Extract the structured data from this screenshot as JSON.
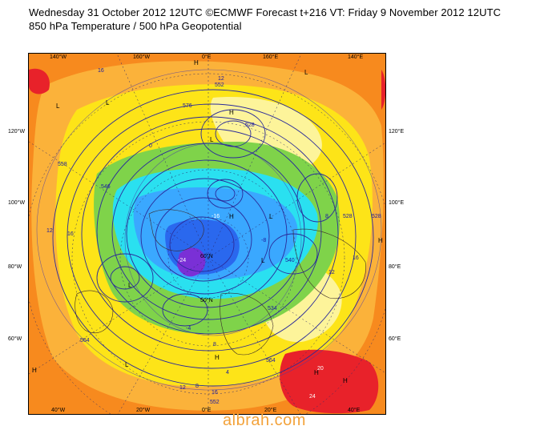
{
  "header": {
    "line1": "Wednesday 31 October 2012 12UTC ©ECMWF Forecast t+216 VT: Friday 9 November 2012 12UTC",
    "line2": "850 hPa Temperature / 500 hPa Geopotential"
  },
  "map": {
    "top_labels": [
      "140°W",
      "160°W",
      "0°E",
      "160°E",
      "140°E"
    ],
    "bottom_labels": [
      "40°W",
      "20°W",
      "0°E",
      "20°E",
      "40°E"
    ],
    "left_labels": [
      "120°W",
      "100°W",
      "80°W",
      "60°W"
    ],
    "right_labels": [
      "120°E",
      "100°E",
      "80°E",
      "60°E"
    ],
    "inner_labels": [
      "60°N",
      "50°N"
    ],
    "temperature_labels": [
      "16",
      "12",
      "0",
      "-16",
      "-24",
      "8",
      "12",
      "16",
      "-8",
      "4",
      "20",
      "16",
      "12",
      "8",
      "24",
      "12",
      "16",
      "-4",
      "8"
    ],
    "geopotential_labels": [
      "552",
      "576",
      "528",
      "558",
      "546",
      "528",
      "540",
      "528",
      "564",
      "534",
      "564",
      "552"
    ],
    "pressure_centres": [
      "L",
      "H",
      "L",
      "H",
      "L",
      "L",
      "H",
      "L",
      "H",
      "L",
      "H",
      "H",
      "L",
      "H",
      "L",
      "H"
    ],
    "colors": {
      "orange": "#f78a1e",
      "light_orange": "#fbb23a",
      "yellow": "#fde418",
      "pale_yellow": "#fdf49a",
      "green": "#7fd34a",
      "cyan": "#2ae0f0",
      "light_blue": "#3aa8ff",
      "blue": "#2a68ee",
      "purple": "#7a30d6",
      "red": "#e8222a",
      "contour": "#2a2a9a"
    }
  },
  "watermark": "albrah.com"
}
